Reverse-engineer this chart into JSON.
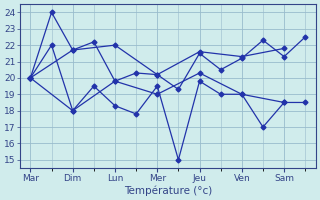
{
  "days_positions": [
    0,
    2,
    4,
    6,
    8,
    10,
    12
  ],
  "days_labels": [
    "Mar",
    "Dim",
    "Lun",
    "Mer",
    "Jeu",
    "Ven",
    "Sam"
  ],
  "series": [
    {
      "x": [
        0,
        1,
        2,
        3,
        4,
        5,
        6,
        7,
        8,
        9,
        10,
        11,
        12,
        13
      ],
      "y": [
        20,
        24,
        21.7,
        22.2,
        19.8,
        20.3,
        20.2,
        19.3,
        21.5,
        20.5,
        21.2,
        22.3,
        21.3,
        22.5
      ]
    },
    {
      "x": [
        0,
        1,
        2,
        3,
        4,
        5,
        6,
        7,
        8,
        9,
        10,
        11,
        12,
        13
      ],
      "y": [
        20,
        22.0,
        18.0,
        19.5,
        18.3,
        17.8,
        19.5,
        15.0,
        19.8,
        19.0,
        19.0,
        17.0,
        18.5,
        18.5
      ]
    },
    {
      "x": [
        0,
        2,
        4,
        6,
        8,
        10,
        12
      ],
      "y": [
        20,
        21.7,
        22.0,
        20.2,
        21.6,
        21.3,
        21.8
      ]
    },
    {
      "x": [
        0,
        2,
        4,
        6,
        8,
        10,
        12
      ],
      "y": [
        20,
        18.0,
        19.8,
        19.0,
        20.3,
        19.0,
        18.5
      ]
    }
  ],
  "line_color": "#2233AA",
  "marker": "D",
  "markersize": 2.5,
  "linewidth": 0.9,
  "xlim": [
    -0.5,
    13.5
  ],
  "ylim": [
    14.5,
    24.5
  ],
  "yticks": [
    15,
    16,
    17,
    18,
    19,
    20,
    21,
    22,
    23,
    24
  ],
  "xlabel": "Température (°c)",
  "bg_color": "#d0ecec",
  "grid_major_color": "#99bbcc",
  "grid_minor_color": "#bbdddd",
  "tick_color": "#334488",
  "spine_color": "#334488"
}
